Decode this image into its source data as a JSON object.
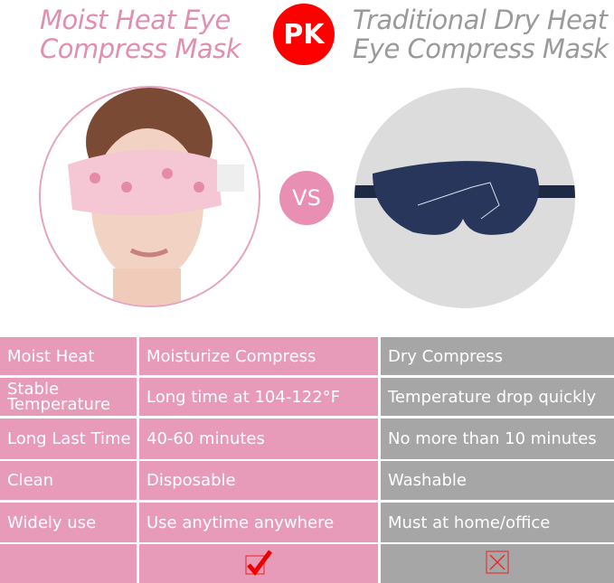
{
  "header": {
    "left_title_line1": "Moist Heat Eye",
    "left_title_line2": "Compress Mask",
    "badge": "PK",
    "right_title_line1": "Traditional Dry Heat",
    "right_title_line2": "Eye Compress Mask",
    "vs": "VS"
  },
  "colors": {
    "pink": "#e89bb8",
    "gray": "#a6a6a6",
    "badge_red": "#ff0000"
  },
  "table": {
    "rows": [
      [
        "Moist Heat",
        "Moisturize Compress",
        "Dry Compress"
      ],
      [
        "Stable Temperature",
        "Long time at 104-122°F",
        "Temperature drop quickly"
      ],
      [
        "Long Last Time",
        "40-60 minutes",
        "No more than 10 minutes"
      ],
      [
        "Clean",
        "Disposable",
        "Washable"
      ],
      [
        "Widely use",
        "Use anytime anywhere",
        "Must at home/office"
      ]
    ],
    "result_icons": [
      "checkmark-icon",
      "cross-icon"
    ]
  }
}
